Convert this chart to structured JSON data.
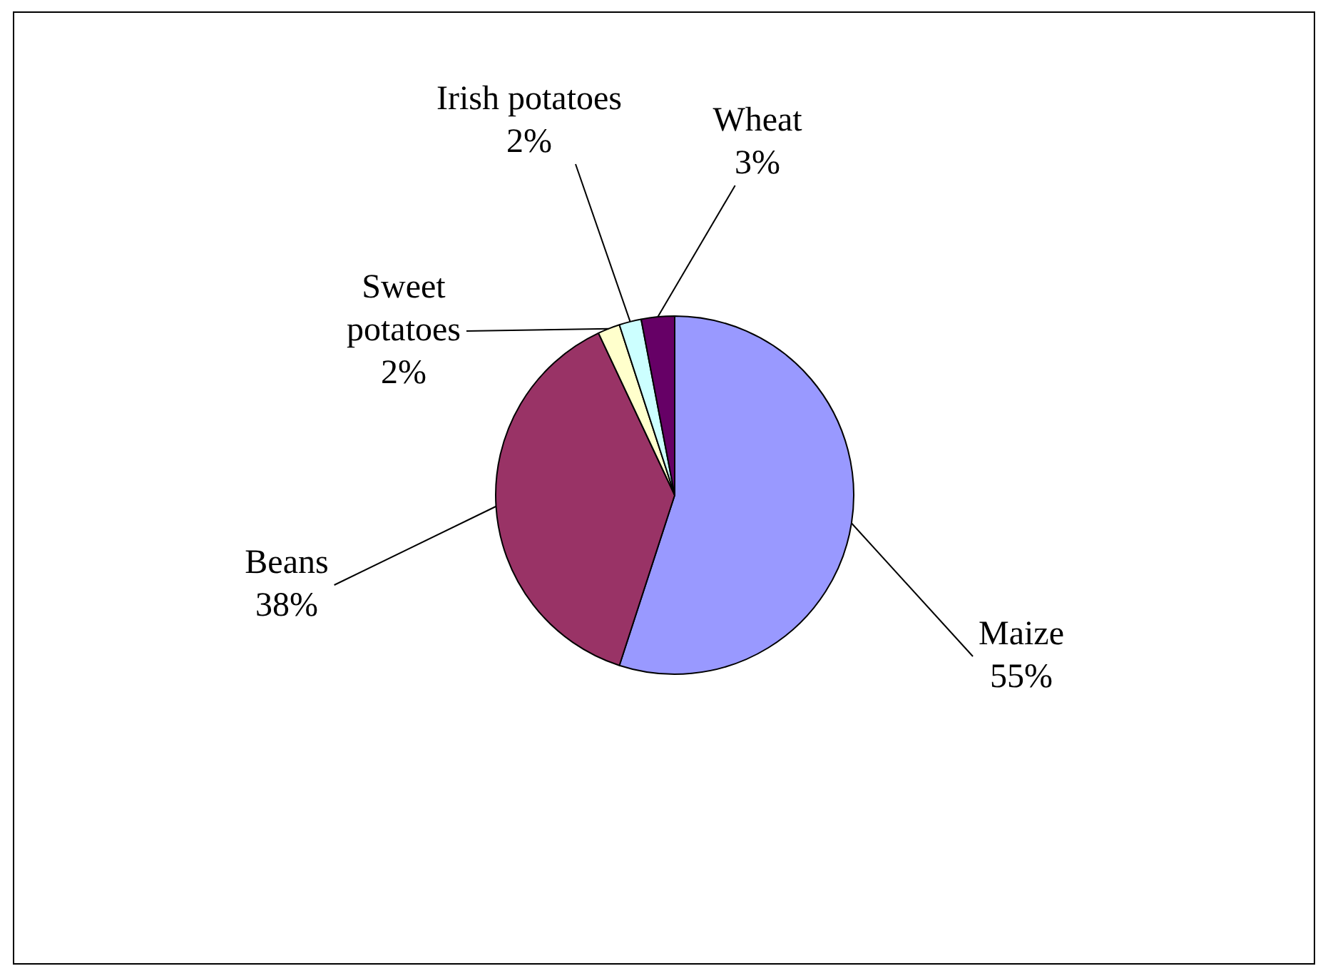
{
  "chart_data": {
    "type": "pie",
    "categories": [
      "Maize",
      "Beans",
      "Sweet potatoes",
      "Irish potatoes",
      "Wheat"
    ],
    "values": [
      55,
      38,
      2,
      2,
      3
    ],
    "colors": [
      "#9999ff",
      "#993366",
      "#ffffcc",
      "#ccffff",
      "#660066"
    ],
    "value_labels": [
      "55%",
      "38%",
      "2%",
      "2%",
      "3%"
    ],
    "legend": false
  }
}
